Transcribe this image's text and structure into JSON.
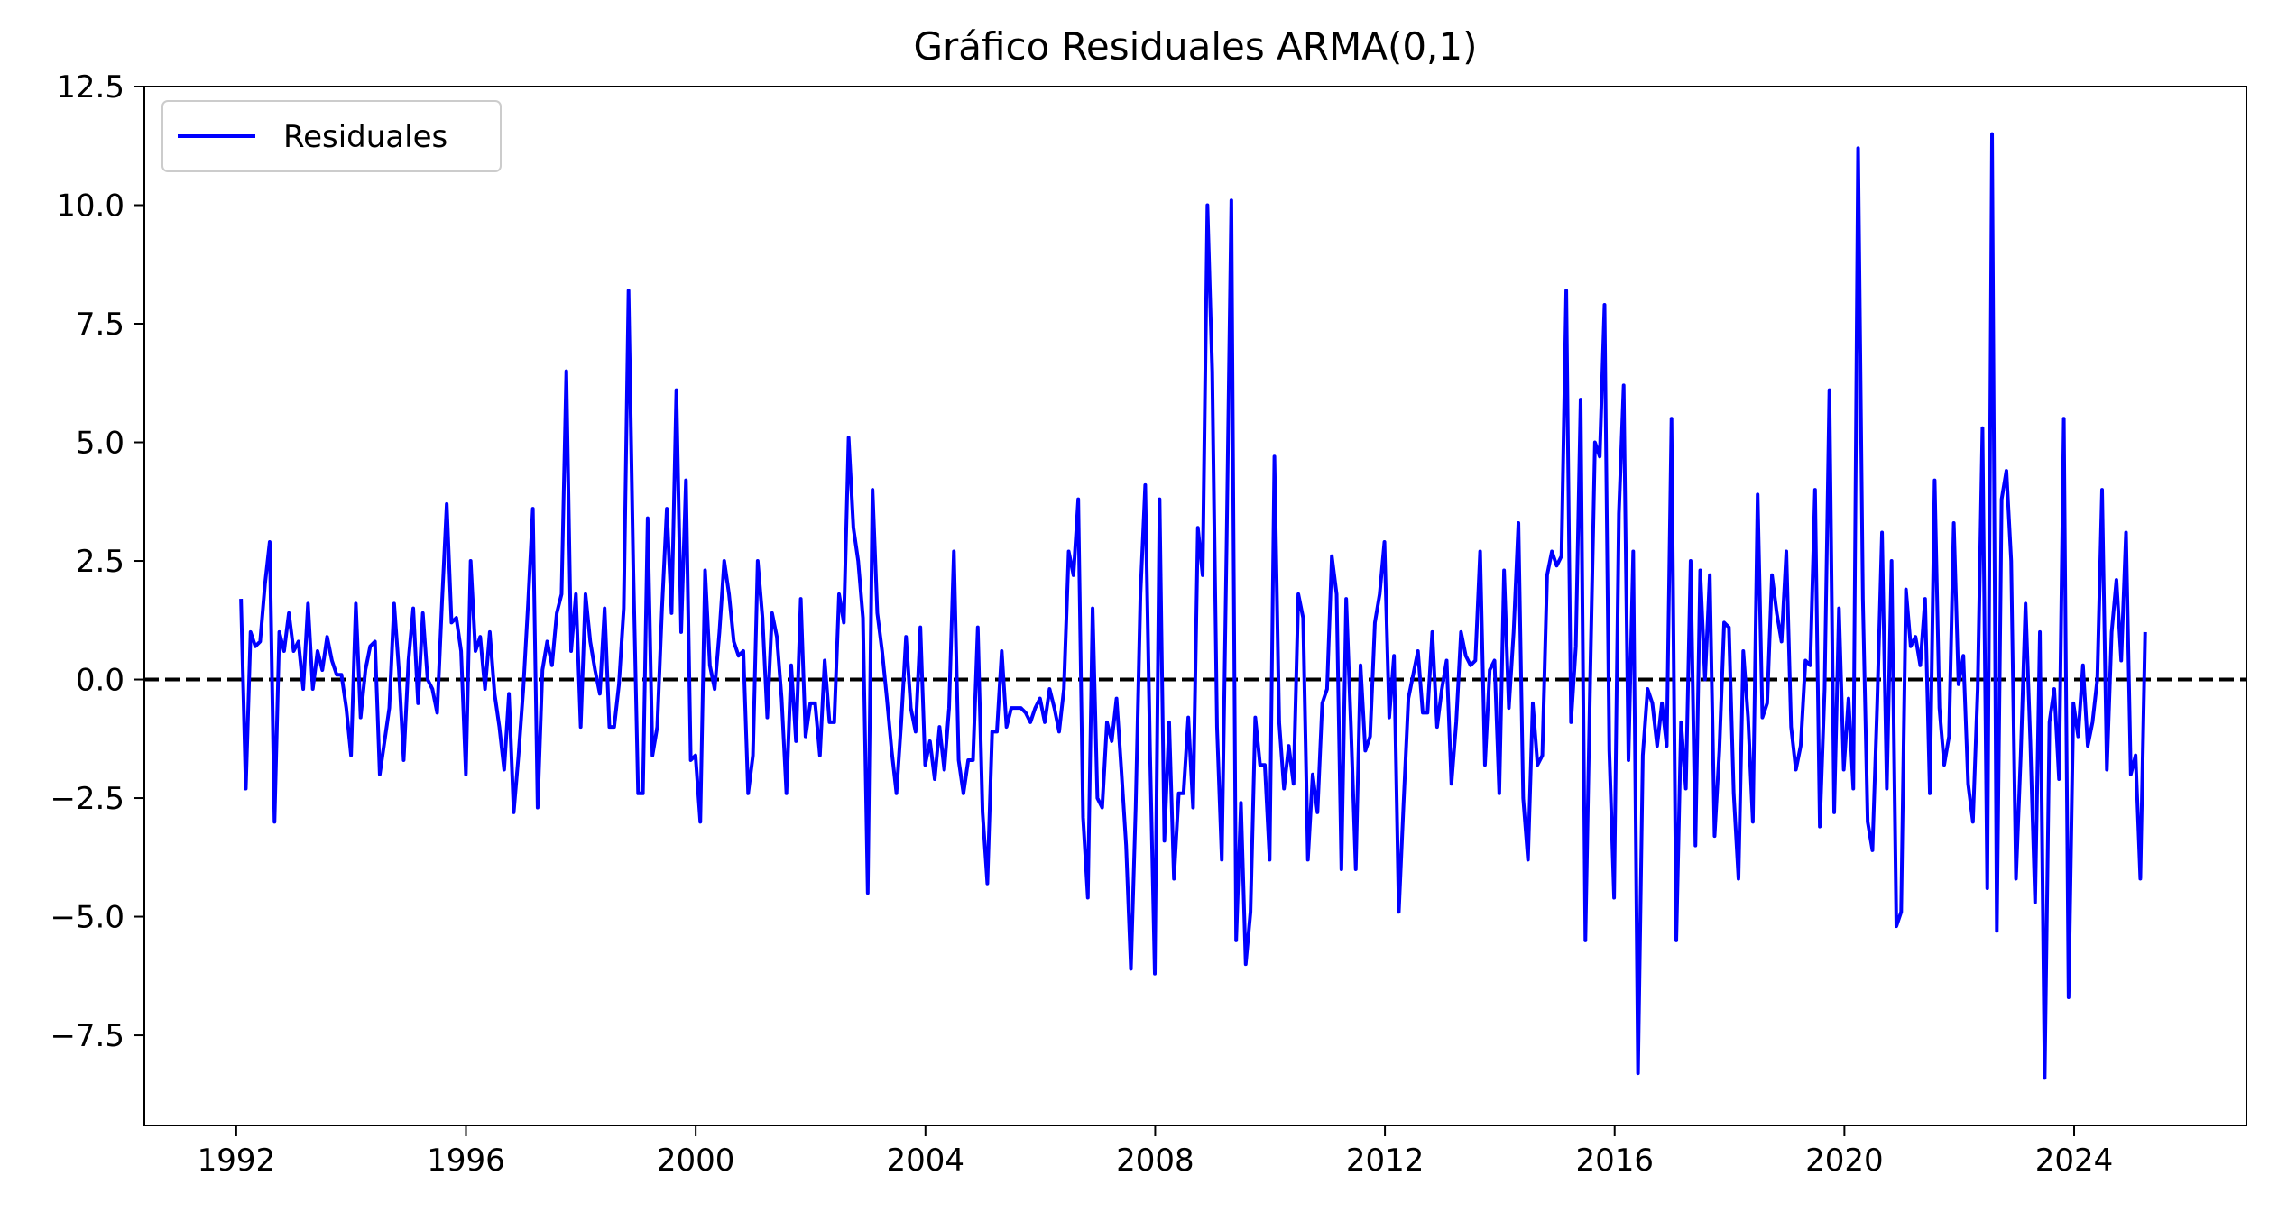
{
  "chart_data": {
    "type": "line",
    "title": "Gráfico Residuales ARMA(0,1)",
    "xlabel": "",
    "ylabel": "",
    "xlim": [
      1990.4,
      2027.0
    ],
    "ylim": [
      -9.4,
      12.5
    ],
    "x_ticks": [
      1992,
      1996,
      2000,
      2004,
      2008,
      2012,
      2016,
      2020,
      2024
    ],
    "x_tick_labels": [
      "1992",
      "1996",
      "2000",
      "2004",
      "2008",
      "2012",
      "2016",
      "2020",
      "2024"
    ],
    "y_ticks": [
      -7.5,
      -5.0,
      -2.5,
      0.0,
      2.5,
      5.0,
      7.5,
      10.0,
      12.5
    ],
    "y_tick_labels": [
      "−7.5",
      "−5.0",
      "−2.5",
      "0.0",
      "2.5",
      "5.0",
      "7.5",
      "10.0",
      "12.5"
    ],
    "grid": false,
    "legend": {
      "position": "top-left",
      "entries": [
        "Residuales"
      ]
    },
    "reference_line": {
      "y": 0.0,
      "style": "dashed",
      "color": "#000000"
    },
    "colors": {
      "series": "#0000ff",
      "reference": "#000000"
    },
    "series": [
      {
        "name": "Residuales",
        "x_start": 1992.083,
        "x_step": 0.0833,
        "values": [
          1.7,
          -2.3,
          1.0,
          0.7,
          0.8,
          2.0,
          2.9,
          -3.0,
          1.0,
          0.6,
          1.4,
          0.6,
          0.8,
          -0.2,
          1.6,
          -0.2,
          0.6,
          0.2,
          0.9,
          0.4,
          0.1,
          0.1,
          -0.6,
          -1.6,
          1.6,
          -0.8,
          0.2,
          0.7,
          0.8,
          -2.0,
          -1.3,
          -0.6,
          1.6,
          0.2,
          -1.7,
          0.4,
          1.5,
          -0.5,
          1.4,
          0.0,
          -0.2,
          -0.7,
          1.6,
          3.7,
          1.2,
          1.3,
          0.6,
          -2.0,
          2.5,
          0.6,
          0.9,
          -0.2,
          1.0,
          -0.3,
          -1.0,
          -1.9,
          -0.3,
          -2.8,
          -1.6,
          -0.2,
          1.6,
          3.6,
          -2.7,
          0.2,
          0.8,
          0.3,
          1.4,
          1.8,
          6.5,
          0.6,
          1.8,
          -1.0,
          1.8,
          0.8,
          0.2,
          -0.3,
          1.5,
          -1.0,
          -1.0,
          -0.1,
          1.5,
          8.2,
          2.3,
          -2.4,
          -2.4,
          3.4,
          -1.6,
          -1.0,
          1.5,
          3.6,
          1.4,
          6.1,
          1.0,
          4.2,
          -1.7,
          -1.6,
          -3.0,
          2.3,
          0.3,
          -0.2,
          1.0,
          2.5,
          1.8,
          0.8,
          0.5,
          0.6,
          -2.4,
          -1.6,
          2.5,
          1.3,
          -0.8,
          1.4,
          0.9,
          -0.4,
          -2.4,
          0.3,
          -1.3,
          1.7,
          -1.2,
          -0.5,
          -0.5,
          -1.6,
          0.4,
          -0.9,
          -0.9,
          1.8,
          1.2,
          5.1,
          3.2,
          2.5,
          1.3,
          -4.5,
          4.0,
          1.4,
          0.6,
          -0.4,
          -1.5,
          -2.4,
          -0.9,
          0.9,
          -0.6,
          -1.1,
          1.1,
          -1.8,
          -1.3,
          -2.1,
          -1.0,
          -1.9,
          -0.6,
          2.7,
          -1.7,
          -2.4,
          -1.7,
          -1.7,
          1.1,
          -2.8,
          -4.3,
          -1.1,
          -1.1,
          0.6,
          -1.0,
          -0.6,
          -0.6,
          -0.6,
          -0.7,
          -0.9,
          -0.6,
          -0.4,
          -0.9,
          -0.2,
          -0.6,
          -1.1,
          -0.2,
          2.7,
          2.2,
          3.8,
          -2.9,
          -4.6,
          1.5,
          -2.5,
          -2.7,
          -0.9,
          -1.3,
          -0.4,
          -1.9,
          -3.5,
          -6.1,
          -2.7,
          1.8,
          4.1,
          -1.5,
          -6.2,
          3.8,
          -3.4,
          -0.9,
          -4.2,
          -2.4,
          -2.4,
          -0.8,
          -2.7,
          3.2,
          2.2,
          10.0,
          6.5,
          -1.0,
          -3.8,
          2.8,
          10.1,
          -5.5,
          -2.6,
          -6.0,
          -4.9,
          -0.8,
          -1.8,
          -1.8,
          -3.8,
          4.7,
          -0.9,
          -2.3,
          -1.4,
          -2.2,
          1.8,
          1.3,
          -3.8,
          -2.0,
          -2.8,
          -0.5,
          -0.2,
          2.6,
          1.8,
          -4.0,
          1.7,
          -1.0,
          -4.0,
          0.3,
          -1.5,
          -1.2,
          1.2,
          1.8,
          2.9,
          -0.8,
          0.5,
          -4.9,
          -2.6,
          -0.4,
          0.1,
          0.6,
          -0.7,
          -0.7,
          1.0,
          -1.0,
          -0.2,
          0.4,
          -2.2,
          -0.9,
          1.0,
          0.5,
          0.3,
          0.4,
          2.7,
          -1.8,
          0.2,
          0.4,
          -2.4,
          2.3,
          -0.6,
          1.0,
          3.3,
          -2.5,
          -3.8,
          -0.5,
          -1.8,
          -1.6,
          2.2,
          2.7,
          2.4,
          2.6,
          8.2,
          -0.9,
          0.7,
          5.9,
          -5.5,
          0.0,
          5.0,
          4.7,
          7.9,
          -1.5,
          -4.6,
          3.5,
          6.2,
          -1.7,
          2.7,
          -8.3,
          -1.6,
          -0.2,
          -0.5,
          -1.4,
          -0.5,
          -1.4,
          5.5,
          -5.5,
          -0.9,
          -2.3,
          2.5,
          -3.5,
          2.3,
          0.0,
          2.2,
          -3.3,
          -1.5,
          1.2,
          1.1,
          -2.4,
          -4.2,
          0.6,
          -0.8,
          -3.0,
          3.9,
          -0.8,
          -0.5,
          2.2,
          1.4,
          0.8,
          2.7,
          -1.0,
          -1.9,
          -1.4,
          0.4,
          0.3,
          4.0,
          -3.1,
          -0.2,
          6.1,
          -2.8,
          1.5,
          -1.9,
          -0.4,
          -2.3,
          11.2,
          1.7,
          -3.0,
          -3.6,
          -0.5,
          3.1,
          -2.3,
          2.5,
          -5.2,
          -4.9,
          1.9,
          0.7,
          0.9,
          0.3,
          1.7,
          -2.4,
          4.2,
          -0.6,
          -1.8,
          -1.2,
          3.3,
          -0.1,
          0.5,
          -2.2,
          -3.0,
          -0.2,
          5.3,
          -4.4,
          11.5,
          -5.3,
          3.8,
          4.4,
          2.5,
          -4.2,
          -1.6,
          1.6,
          -1.3,
          -4.7,
          1.0,
          -8.4,
          -0.9,
          -0.2,
          -2.1,
          5.5,
          -6.7,
          -0.5,
          -1.2,
          0.3,
          -1.4,
          -0.9,
          0.0,
          4.0,
          -1.9,
          1.0,
          2.1,
          0.4,
          3.1,
          -2.0,
          -1.6,
          -4.2,
          1.0
        ]
      }
    ]
  }
}
